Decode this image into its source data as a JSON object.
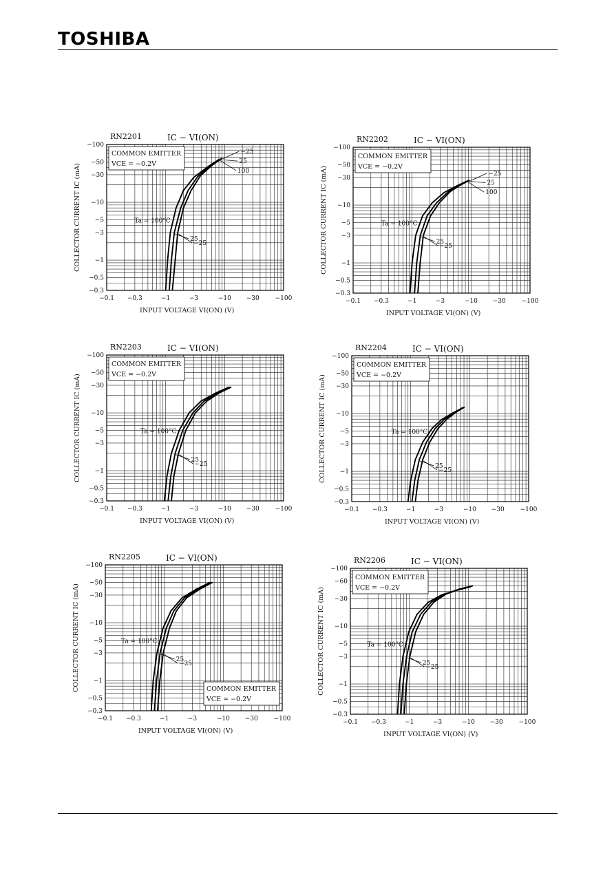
{
  "header": {
    "brand": "TOSHIBA"
  },
  "chart_data": [
    {
      "type": "line",
      "part": "RN2201",
      "title": "IC − VI(ON)",
      "xlabel": "INPUT VOLTAGE   VI(ON)   (V)",
      "ylabel": "COLLECTOR CURRENT   IC   (mA)",
      "x_scale": "log",
      "y_scale": "log",
      "xlim": [
        -0.1,
        -100
      ],
      "ylim": [
        -0.3,
        -100
      ],
      "x_ticks": [
        "−0.1",
        "−0.3",
        "−1",
        "−3",
        "−10",
        "−30",
        "−100"
      ],
      "y_ticks": [
        "−0.3",
        "−0.5",
        "−1",
        "−3",
        "−5",
        "−10",
        "−30",
        "−50",
        "−100"
      ],
      "condition": {
        "line1": "COMMON EMITTER",
        "line2": "VCE = −0.2V",
        "pos": "top-left"
      },
      "ta_label": "Ta = 100°C",
      "series": [
        {
          "name": "100",
          "x": [
            -1.0,
            -1.08,
            -1.2,
            -1.5,
            -2.0,
            -3.0,
            -5.0,
            -8.0
          ],
          "y": [
            -0.3,
            -1.0,
            -3.0,
            -8.0,
            -16.0,
            -27.0,
            -40.0,
            -55.0
          ]
        },
        {
          "name": "25",
          "x": [
            -1.15,
            -1.25,
            -1.4,
            -1.8,
            -2.4,
            -3.5,
            -5.5,
            -8.5
          ],
          "y": [
            -0.3,
            -1.0,
            -3.0,
            -8.0,
            -16.0,
            -28.0,
            -42.0,
            -56.0
          ]
        },
        {
          "name": "−25",
          "x": [
            -1.3,
            -1.45,
            -1.6,
            -2.0,
            -2.7,
            -3.9,
            -6.0,
            -9.0
          ],
          "y": [
            -0.3,
            -1.0,
            -3.0,
            -8.0,
            -16.0,
            -29.0,
            -43.0,
            -58.0
          ]
        }
      ],
      "labels_top": [
        "−25",
        "25",
        "100"
      ],
      "labels_mid": [
        "25",
        "−25"
      ]
    },
    {
      "type": "line",
      "part": "RN2202",
      "title": "IC − VI(ON)",
      "xlabel": "INPUT VOLTAGE   VI(ON)   (V)",
      "ylabel": "COLLECTOR CURRENT   IC   (mA)",
      "x_scale": "log",
      "y_scale": "log",
      "xlim": [
        -0.1,
        -100
      ],
      "ylim": [
        -0.3,
        -100
      ],
      "x_ticks": [
        "−0.1",
        "−0.3",
        "−1",
        "−3",
        "−10",
        "−30",
        "−100"
      ],
      "y_ticks": [
        "−0.3",
        "−0.5",
        "−1",
        "−3",
        "−5",
        "−10",
        "−30",
        "−50",
        "−100"
      ],
      "condition": {
        "line1": "COMMON EMITTER",
        "line2": "VCE = −0.2V",
        "pos": "top-left"
      },
      "ta_label": "Ta = 100°C",
      "series": [
        {
          "name": "100",
          "x": [
            -0.92,
            -1.0,
            -1.15,
            -1.5,
            -2.2,
            -3.5,
            -5.5,
            -8.5
          ],
          "y": [
            -0.3,
            -1.0,
            -3.0,
            -6.5,
            -11.0,
            -16.5,
            -21.0,
            -26.0
          ]
        },
        {
          "name": "25",
          "x": [
            -1.1,
            -1.2,
            -1.38,
            -1.8,
            -2.6,
            -4.0,
            -6.0,
            -9.0
          ],
          "y": [
            -0.3,
            -1.0,
            -3.0,
            -6.5,
            -11.0,
            -16.5,
            -21.5,
            -26.5
          ]
        },
        {
          "name": "−25",
          "x": [
            -1.25,
            -1.37,
            -1.55,
            -2.05,
            -2.9,
            -4.4,
            -6.5,
            -9.5
          ],
          "y": [
            -0.3,
            -1.0,
            -3.0,
            -6.5,
            -11.0,
            -17.0,
            -22.0,
            -27.0
          ]
        }
      ],
      "labels_top": [
        "−25",
        "25",
        "100"
      ],
      "labels_mid": [
        "25",
        "−25"
      ]
    },
    {
      "type": "line",
      "part": "RN2203",
      "title": "IC − VI(ON)",
      "xlabel": "INPUT VOLTAGE   VI(ON)   (V)",
      "ylabel": "COLLECTOR CURRENT   IC   (mA)",
      "x_scale": "log",
      "y_scale": "log",
      "xlim": [
        -0.1,
        -100
      ],
      "ylim": [
        -0.3,
        -100
      ],
      "x_ticks": [
        "−0.1",
        "−0.3",
        "−1",
        "−3",
        "−10",
        "−30",
        "−100"
      ],
      "y_ticks": [
        "−0.3",
        "−0.5",
        "−1",
        "−3",
        "−5",
        "−10",
        "−30",
        "−50",
        "−100"
      ],
      "condition": {
        "line1": "COMMON EMITTER",
        "line2": "VCE = −0.2V",
        "pos": "top-left"
      },
      "ta_label": "Ta = 100°C",
      "series": [
        {
          "name": "100",
          "x": [
            -0.95,
            -1.05,
            -1.25,
            -1.7,
            -2.5,
            -4.0,
            -7.0,
            -12.0
          ],
          "y": [
            -0.3,
            -0.8,
            -2.0,
            -5.0,
            -10.0,
            -16.0,
            -22.0,
            -28.0
          ]
        },
        {
          "name": "25",
          "x": [
            -1.1,
            -1.22,
            -1.45,
            -1.95,
            -2.9,
            -4.5,
            -7.5,
            -12.5
          ],
          "y": [
            -0.3,
            -0.8,
            -2.0,
            -5.0,
            -10.0,
            -16.0,
            -22.0,
            -28.0
          ]
        },
        {
          "name": "−25",
          "x": [
            -1.25,
            -1.38,
            -1.65,
            -2.2,
            -3.2,
            -5.0,
            -8.0,
            -13.0
          ],
          "y": [
            -0.3,
            -0.8,
            -2.0,
            -5.0,
            -10.0,
            -16.0,
            -22.0,
            -28.0
          ]
        }
      ],
      "labels_top": [],
      "labels_mid": [
        "25",
        "−25"
      ]
    },
    {
      "type": "line",
      "part": "RN2204",
      "title": "IC − VI(ON)",
      "xlabel": "INPUT VOLTAGE   VI(ON)   (V)",
      "ylabel": "COLLECTOR CURRENT   IC   (mA)",
      "x_scale": "log",
      "y_scale": "log",
      "xlim": [
        -0.1,
        -100
      ],
      "ylim": [
        -0.3,
        -100
      ],
      "x_ticks": [
        "−0.1",
        "−0.3",
        "−1",
        "−3",
        "−10",
        "−30",
        "−100"
      ],
      "y_ticks": [
        "−0.3",
        "−0.5",
        "−1",
        "−3",
        "−5",
        "−10",
        "−30",
        "−50",
        "−100"
      ],
      "condition": {
        "line1": "COMMON EMITTER",
        "line2": "VCE = −0.2V",
        "pos": "top-left"
      },
      "ta_label": "Ta = 100°C",
      "series": [
        {
          "name": "100",
          "x": [
            -0.9,
            -1.0,
            -1.2,
            -1.6,
            -2.3,
            -3.3,
            -5.0,
            -7.5
          ],
          "y": [
            -0.3,
            -0.7,
            -1.6,
            -3.2,
            -5.5,
            -7.8,
            -10.0,
            -12.5
          ]
        },
        {
          "name": "25",
          "x": [
            -1.05,
            -1.17,
            -1.4,
            -1.85,
            -2.6,
            -3.7,
            -5.4,
            -7.8
          ],
          "y": [
            -0.3,
            -0.7,
            -1.6,
            -3.2,
            -5.5,
            -7.9,
            -10.2,
            -12.8
          ]
        },
        {
          "name": "−25",
          "x": [
            -1.2,
            -1.33,
            -1.6,
            -2.1,
            -2.9,
            -4.1,
            -5.8,
            -8.2
          ],
          "y": [
            -0.3,
            -0.7,
            -1.6,
            -3.2,
            -5.5,
            -8.0,
            -10.5,
            -13.0
          ]
        }
      ],
      "labels_top": [],
      "labels_mid": [
        "25",
        "−25"
      ]
    },
    {
      "type": "line",
      "part": "RN2205",
      "title": "IC − VI(ON)",
      "xlabel": "INPUT VOLTAGE   VI(ON)   (V)",
      "ylabel": "COLLECTOR CURRENT   IC   (mA)",
      "x_scale": "log",
      "y_scale": "log",
      "xlim": [
        -0.1,
        -100
      ],
      "ylim": [
        -0.3,
        -100
      ],
      "x_ticks": [
        "−0.1",
        "−0.3",
        "−1",
        "−3",
        "−10",
        "−30",
        "−100"
      ],
      "y_ticks": [
        "−0.3",
        "−0.5",
        "−1",
        "−3",
        "−5",
        "−10",
        "−30",
        "−50",
        "−100"
      ],
      "condition": {
        "line1": "COMMON EMITTER",
        "line2": "VCE = −0.2V",
        "pos": "bottom-right"
      },
      "ta_label": "Ta = 100°C",
      "series": [
        {
          "name": "100",
          "x": [
            -0.6,
            -0.65,
            -0.75,
            -0.95,
            -1.3,
            -2.0,
            -3.5,
            -6.0
          ],
          "y": [
            -0.3,
            -1.0,
            -3.0,
            -8.0,
            -16.0,
            -27.0,
            -38.0,
            -50.0
          ]
        },
        {
          "name": "25",
          "x": [
            -0.68,
            -0.74,
            -0.85,
            -1.08,
            -1.45,
            -2.2,
            -3.8,
            -6.3
          ],
          "y": [
            -0.3,
            -1.0,
            -3.0,
            -8.0,
            -16.0,
            -27.0,
            -38.0,
            -50.0
          ]
        },
        {
          "name": "−25",
          "x": [
            -0.77,
            -0.84,
            -0.96,
            -1.22,
            -1.6,
            -2.4,
            -4.0,
            -6.6
          ],
          "y": [
            -0.3,
            -1.0,
            -3.0,
            -8.0,
            -16.0,
            -27.0,
            -38.0,
            -50.0
          ]
        }
      ],
      "labels_top": [],
      "labels_mid": [
        "25",
        "−25"
      ]
    },
    {
      "type": "line",
      "part": "RN2206",
      "title": "IC − VI(ON)",
      "xlabel": "INPUT VOLTAGE   VI(ON)   (V)",
      "ylabel": "COLLECTOR CURRENT   IC   (mA)",
      "x_scale": "log",
      "y_scale": "log",
      "xlim": [
        -0.1,
        -100
      ],
      "ylim": [
        -0.3,
        -100
      ],
      "x_ticks": [
        "−0.1",
        "−0.3",
        "−1",
        "−3",
        "−10",
        "−30",
        "−100"
      ],
      "y_ticks": [
        "−0.3",
        "−0.5",
        "−1",
        "−3",
        "−5",
        "−10",
        "−30",
        "−60",
        "−100"
      ],
      "condition": {
        "line1": "COMMON EMITTER",
        "line2": "VCE = −0.2V",
        "pos": "top-left"
      },
      "ta_label": "Ta = 100°C",
      "series": [
        {
          "name": "100",
          "x": [
            -0.63,
            -0.68,
            -0.78,
            -0.98,
            -1.35,
            -2.1,
            -3.6,
            -6.5,
            -11.0
          ],
          "y": [
            -0.3,
            -1.0,
            -3.0,
            -8.0,
            -16.0,
            -26.0,
            -35.0,
            -42.0,
            -48.0
          ]
        },
        {
          "name": "25",
          "x": [
            -0.72,
            -0.78,
            -0.9,
            -1.12,
            -1.55,
            -2.35,
            -3.9,
            -6.8,
            -11.5
          ],
          "y": [
            -0.3,
            -1.0,
            -3.0,
            -8.0,
            -16.0,
            -26.0,
            -35.0,
            -43.0,
            -49.0
          ]
        },
        {
          "name": "−25",
          "x": [
            -0.82,
            -0.89,
            -1.02,
            -1.28,
            -1.75,
            -2.6,
            -4.2,
            -7.1,
            -12.0
          ],
          "y": [
            -0.3,
            -1.0,
            -3.0,
            -8.0,
            -16.0,
            -26.0,
            -36.0,
            -44.0,
            -50.0
          ]
        }
      ],
      "labels_top": [],
      "labels_mid": [
        "25",
        "−25"
      ]
    }
  ]
}
